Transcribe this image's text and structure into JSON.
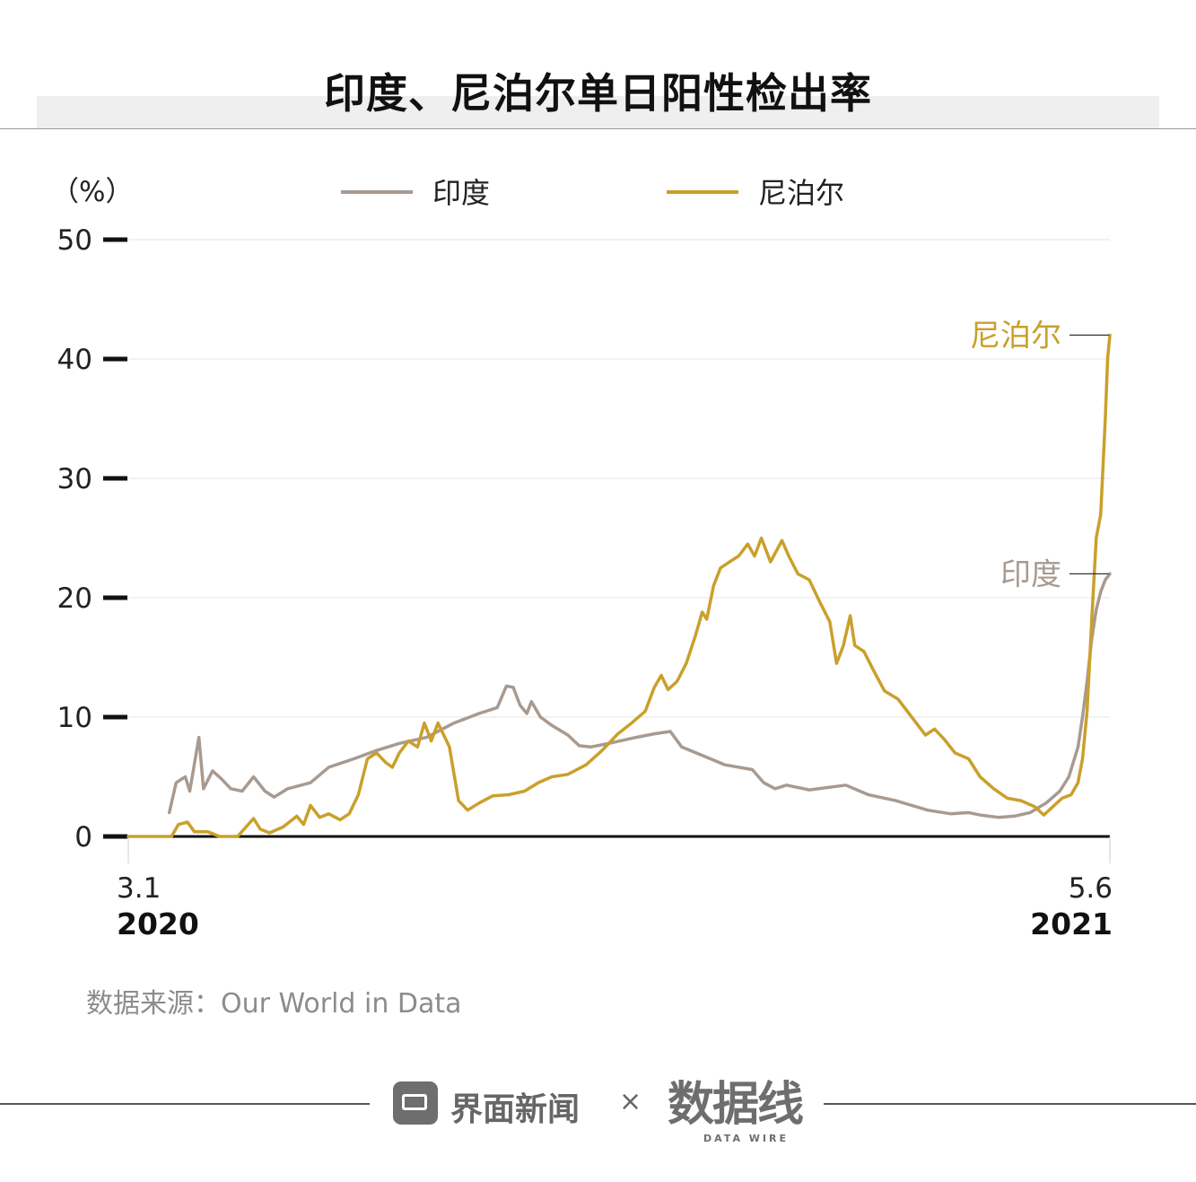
{
  "title": "印度、尼泊尔单日阳性检出率",
  "source": "数据来源：Our World in Data",
  "footer": {
    "brand": "界面新闻",
    "separator": "×",
    "partner": "数据线",
    "partner_sub": "DATA WIRE"
  },
  "colors": {
    "india": "#a89a90",
    "nepal": "#c9a02b",
    "axis": "#111111",
    "grid": "#e6e6e6",
    "tick_text": "#222222"
  },
  "chart_data": {
    "type": "line",
    "title": "印度、尼泊尔单日阳性检出率",
    "unit_label": "（%）",
    "ylim": [
      0,
      50
    ],
    "yticks": [
      0,
      10,
      20,
      30,
      40,
      50
    ],
    "ytick_labels": [
      "0",
      "10",
      "20",
      "30",
      "40",
      "50"
    ],
    "xlim": [
      "2020-03-01",
      "2021-05-06"
    ],
    "x_tick_labels": [
      {
        "date": "2020-03-01",
        "label": "3.1",
        "year": "2020"
      },
      {
        "date": "2021-05-06",
        "label": "5.6",
        "year": "2021"
      }
    ],
    "legend": {
      "position": "top-center",
      "entries": [
        "印度",
        "尼泊尔"
      ]
    },
    "grid": true,
    "series": [
      {
        "name": "印度",
        "end_label": "印度",
        "points": [
          [
            "2020-03-19",
            2.0
          ],
          [
            "2020-03-22",
            4.5
          ],
          [
            "2020-03-26",
            5.0
          ],
          [
            "2020-03-28",
            3.8
          ],
          [
            "2020-04-01",
            8.3
          ],
          [
            "2020-04-03",
            4.0
          ],
          [
            "2020-04-07",
            5.5
          ],
          [
            "2020-04-11",
            4.8
          ],
          [
            "2020-04-15",
            4.0
          ],
          [
            "2020-04-20",
            3.8
          ],
          [
            "2020-04-25",
            5.0
          ],
          [
            "2020-04-30",
            3.8
          ],
          [
            "2020-05-04",
            3.3
          ],
          [
            "2020-05-10",
            4.0
          ],
          [
            "2020-05-20",
            4.5
          ],
          [
            "2020-05-28",
            5.8
          ],
          [
            "2020-06-08",
            6.5
          ],
          [
            "2020-06-18",
            7.2
          ],
          [
            "2020-06-28",
            7.8
          ],
          [
            "2020-07-10",
            8.3
          ],
          [
            "2020-07-22",
            9.5
          ],
          [
            "2020-08-02",
            10.3
          ],
          [
            "2020-08-10",
            10.8
          ],
          [
            "2020-08-14",
            12.6
          ],
          [
            "2020-08-17",
            12.5
          ],
          [
            "2020-08-20",
            11.0
          ],
          [
            "2020-08-23",
            10.3
          ],
          [
            "2020-08-25",
            11.3
          ],
          [
            "2020-08-29",
            10.0
          ],
          [
            "2020-09-03",
            9.3
          ],
          [
            "2020-09-10",
            8.5
          ],
          [
            "2020-09-15",
            7.6
          ],
          [
            "2020-09-20",
            7.5
          ],
          [
            "2020-09-28",
            7.8
          ],
          [
            "2020-10-10",
            8.3
          ],
          [
            "2020-10-18",
            8.6
          ],
          [
            "2020-10-25",
            8.8
          ],
          [
            "2020-10-30",
            7.5
          ],
          [
            "2020-11-08",
            6.8
          ],
          [
            "2020-11-18",
            6.0
          ],
          [
            "2020-11-30",
            5.6
          ],
          [
            "2020-12-05",
            4.5
          ],
          [
            "2020-12-10",
            4.0
          ],
          [
            "2020-12-15",
            4.3
          ],
          [
            "2020-12-25",
            3.9
          ],
          [
            "2021-01-10",
            4.3
          ],
          [
            "2021-01-20",
            3.5
          ],
          [
            "2021-02-01",
            3.0
          ],
          [
            "2021-02-15",
            2.2
          ],
          [
            "2021-02-25",
            1.9
          ],
          [
            "2021-03-05",
            2.0
          ],
          [
            "2021-03-10",
            1.8
          ],
          [
            "2021-03-18",
            1.6
          ],
          [
            "2021-03-25",
            1.7
          ],
          [
            "2021-04-01",
            2.0
          ],
          [
            "2021-04-08",
            2.8
          ],
          [
            "2021-04-14",
            3.8
          ],
          [
            "2021-04-18",
            5.0
          ],
          [
            "2021-04-22",
            7.5
          ],
          [
            "2021-04-24",
            10.0
          ],
          [
            "2021-04-26",
            13.0
          ],
          [
            "2021-04-28",
            16.5
          ],
          [
            "2021-04-30",
            19.0
          ],
          [
            "2021-05-02",
            20.5
          ],
          [
            "2021-05-04",
            21.5
          ],
          [
            "2021-05-06",
            22.0
          ]
        ]
      },
      {
        "name": "尼泊尔",
        "end_label": "尼泊尔",
        "points": [
          [
            "2020-03-01",
            0
          ],
          [
            "2020-03-20",
            0
          ],
          [
            "2020-03-23",
            1.0
          ],
          [
            "2020-03-27",
            1.2
          ],
          [
            "2020-03-30",
            0.4
          ],
          [
            "2020-04-05",
            0.4
          ],
          [
            "2020-04-10",
            0
          ],
          [
            "2020-04-18",
            0
          ],
          [
            "2020-04-25",
            1.5
          ],
          [
            "2020-04-28",
            0.6
          ],
          [
            "2020-05-02",
            0.3
          ],
          [
            "2020-05-08",
            0.8
          ],
          [
            "2020-05-14",
            1.7
          ],
          [
            "2020-05-17",
            1.0
          ],
          [
            "2020-05-20",
            2.6
          ],
          [
            "2020-05-24",
            1.6
          ],
          [
            "2020-05-28",
            1.9
          ],
          [
            "2020-06-02",
            1.4
          ],
          [
            "2020-06-06",
            1.9
          ],
          [
            "2020-06-10",
            3.5
          ],
          [
            "2020-06-14",
            6.5
          ],
          [
            "2020-06-18",
            7.0
          ],
          [
            "2020-06-22",
            6.2
          ],
          [
            "2020-06-25",
            5.8
          ],
          [
            "2020-06-28",
            7.0
          ],
          [
            "2020-07-02",
            8.0
          ],
          [
            "2020-07-06",
            7.5
          ],
          [
            "2020-07-09",
            9.5
          ],
          [
            "2020-07-12",
            8.0
          ],
          [
            "2020-07-15",
            9.5
          ],
          [
            "2020-07-20",
            7.5
          ],
          [
            "2020-07-24",
            3.0
          ],
          [
            "2020-07-28",
            2.2
          ],
          [
            "2020-08-02",
            2.8
          ],
          [
            "2020-08-08",
            3.4
          ],
          [
            "2020-08-15",
            3.5
          ],
          [
            "2020-08-22",
            3.8
          ],
          [
            "2020-08-28",
            4.5
          ],
          [
            "2020-09-03",
            5.0
          ],
          [
            "2020-09-10",
            5.2
          ],
          [
            "2020-09-18",
            6.0
          ],
          [
            "2020-09-25",
            7.2
          ],
          [
            "2020-10-02",
            8.6
          ],
          [
            "2020-10-08",
            9.5
          ],
          [
            "2020-10-14",
            10.5
          ],
          [
            "2020-10-18",
            12.5
          ],
          [
            "2020-10-21",
            13.5
          ],
          [
            "2020-10-24",
            12.3
          ],
          [
            "2020-10-28",
            13.0
          ],
          [
            "2020-11-01",
            14.5
          ],
          [
            "2020-11-05",
            16.8
          ],
          [
            "2020-11-08",
            18.8
          ],
          [
            "2020-11-10",
            18.2
          ],
          [
            "2020-11-13",
            21.0
          ],
          [
            "2020-11-16",
            22.5
          ],
          [
            "2020-11-20",
            23.0
          ],
          [
            "2020-11-24",
            23.5
          ],
          [
            "2020-11-28",
            24.5
          ],
          [
            "2020-12-01",
            23.5
          ],
          [
            "2020-12-04",
            25.0
          ],
          [
            "2020-12-08",
            23.0
          ],
          [
            "2020-12-13",
            24.8
          ],
          [
            "2020-12-16",
            23.5
          ],
          [
            "2020-12-20",
            22.0
          ],
          [
            "2020-12-25",
            21.5
          ],
          [
            "2020-12-30",
            19.5
          ],
          [
            "2021-01-03",
            18.0
          ],
          [
            "2021-01-06",
            14.5
          ],
          [
            "2021-01-09",
            16.0
          ],
          [
            "2021-01-12",
            18.5
          ],
          [
            "2021-01-14",
            16.0
          ],
          [
            "2021-01-18",
            15.5
          ],
          [
            "2021-01-22",
            14.0
          ],
          [
            "2021-01-27",
            12.2
          ],
          [
            "2021-02-02",
            11.5
          ],
          [
            "2021-02-08",
            10.0
          ],
          [
            "2021-02-14",
            8.5
          ],
          [
            "2021-02-18",
            9.0
          ],
          [
            "2021-02-22",
            8.2
          ],
          [
            "2021-02-27",
            7.0
          ],
          [
            "2021-03-05",
            6.5
          ],
          [
            "2021-03-10",
            5.0
          ],
          [
            "2021-03-16",
            4.0
          ],
          [
            "2021-03-22",
            3.2
          ],
          [
            "2021-03-28",
            3.0
          ],
          [
            "2021-04-03",
            2.5
          ],
          [
            "2021-04-07",
            1.8
          ],
          [
            "2021-04-11",
            2.5
          ],
          [
            "2021-04-15",
            3.2
          ],
          [
            "2021-04-19",
            3.5
          ],
          [
            "2021-04-22",
            4.5
          ],
          [
            "2021-04-24",
            6.5
          ],
          [
            "2021-04-26",
            10.5
          ],
          [
            "2021-04-28",
            18.0
          ],
          [
            "2021-04-30",
            25.0
          ],
          [
            "2021-05-02",
            27.0
          ],
          [
            "2021-05-04",
            35.0
          ],
          [
            "2021-05-05",
            40.0
          ],
          [
            "2021-05-06",
            42.0
          ]
        ]
      }
    ]
  }
}
